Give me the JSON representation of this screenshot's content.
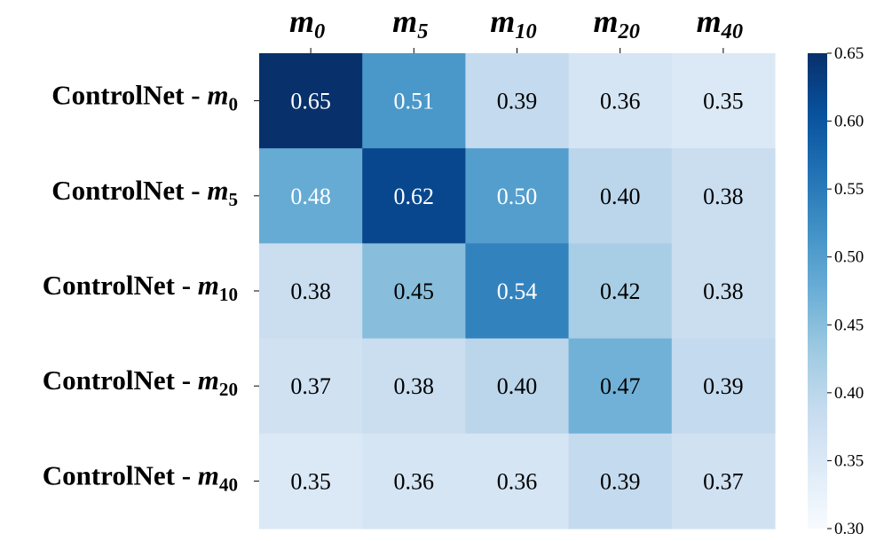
{
  "chart_data": {
    "type": "heatmap",
    "columns": [
      "m_0",
      "m_5",
      "m_10",
      "m_20",
      "m_40"
    ],
    "column_display": [
      {
        "base": "m",
        "sub": "0"
      },
      {
        "base": "m",
        "sub": "5"
      },
      {
        "base": "m",
        "sub": "10"
      },
      {
        "base": "m",
        "sub": "20"
      },
      {
        "base": "m",
        "sub": "40"
      }
    ],
    "rows": [
      "ControlNet - m_0",
      "ControlNet - m_5",
      "ControlNet - m_10",
      "ControlNet - m_20",
      "ControlNet - m_40"
    ],
    "row_display": [
      {
        "prefix": "ControlNet - ",
        "base": "m",
        "sub": "0"
      },
      {
        "prefix": "ControlNet - ",
        "base": "m",
        "sub": "5"
      },
      {
        "prefix": "ControlNet - ",
        "base": "m",
        "sub": "10"
      },
      {
        "prefix": "ControlNet - ",
        "base": "m",
        "sub": "20"
      },
      {
        "prefix": "ControlNet - ",
        "base": "m",
        "sub": "40"
      }
    ],
    "values": [
      [
        0.65,
        0.51,
        0.39,
        0.36,
        0.35
      ],
      [
        0.48,
        0.62,
        0.5,
        0.4,
        0.38
      ],
      [
        0.38,
        0.45,
        0.54,
        0.42,
        0.38
      ],
      [
        0.37,
        0.38,
        0.4,
        0.47,
        0.39
      ],
      [
        0.35,
        0.36,
        0.36,
        0.39,
        0.37
      ]
    ],
    "value_format_decimals": 2,
    "colormap": "Blues",
    "colorbar": {
      "range": [
        0.3,
        0.65
      ],
      "ticks": [
        0.3,
        0.35,
        0.4,
        0.45,
        0.5,
        0.55,
        0.6,
        0.65
      ],
      "tick_labels": [
        "0.30",
        "0.35",
        "0.40",
        "0.45",
        "0.50",
        "0.55",
        "0.60",
        "0.65"
      ]
    },
    "title": "",
    "xlabel": "",
    "ylabel": ""
  },
  "colors": {
    "text_dark": "#000000",
    "text_light": "#ffffff",
    "blues_stops": [
      "#f7fbff",
      "#deebf7",
      "#c6dbef",
      "#9ecae1",
      "#6baed6",
      "#4292c6",
      "#2171b5",
      "#08519c",
      "#08306b"
    ]
  }
}
